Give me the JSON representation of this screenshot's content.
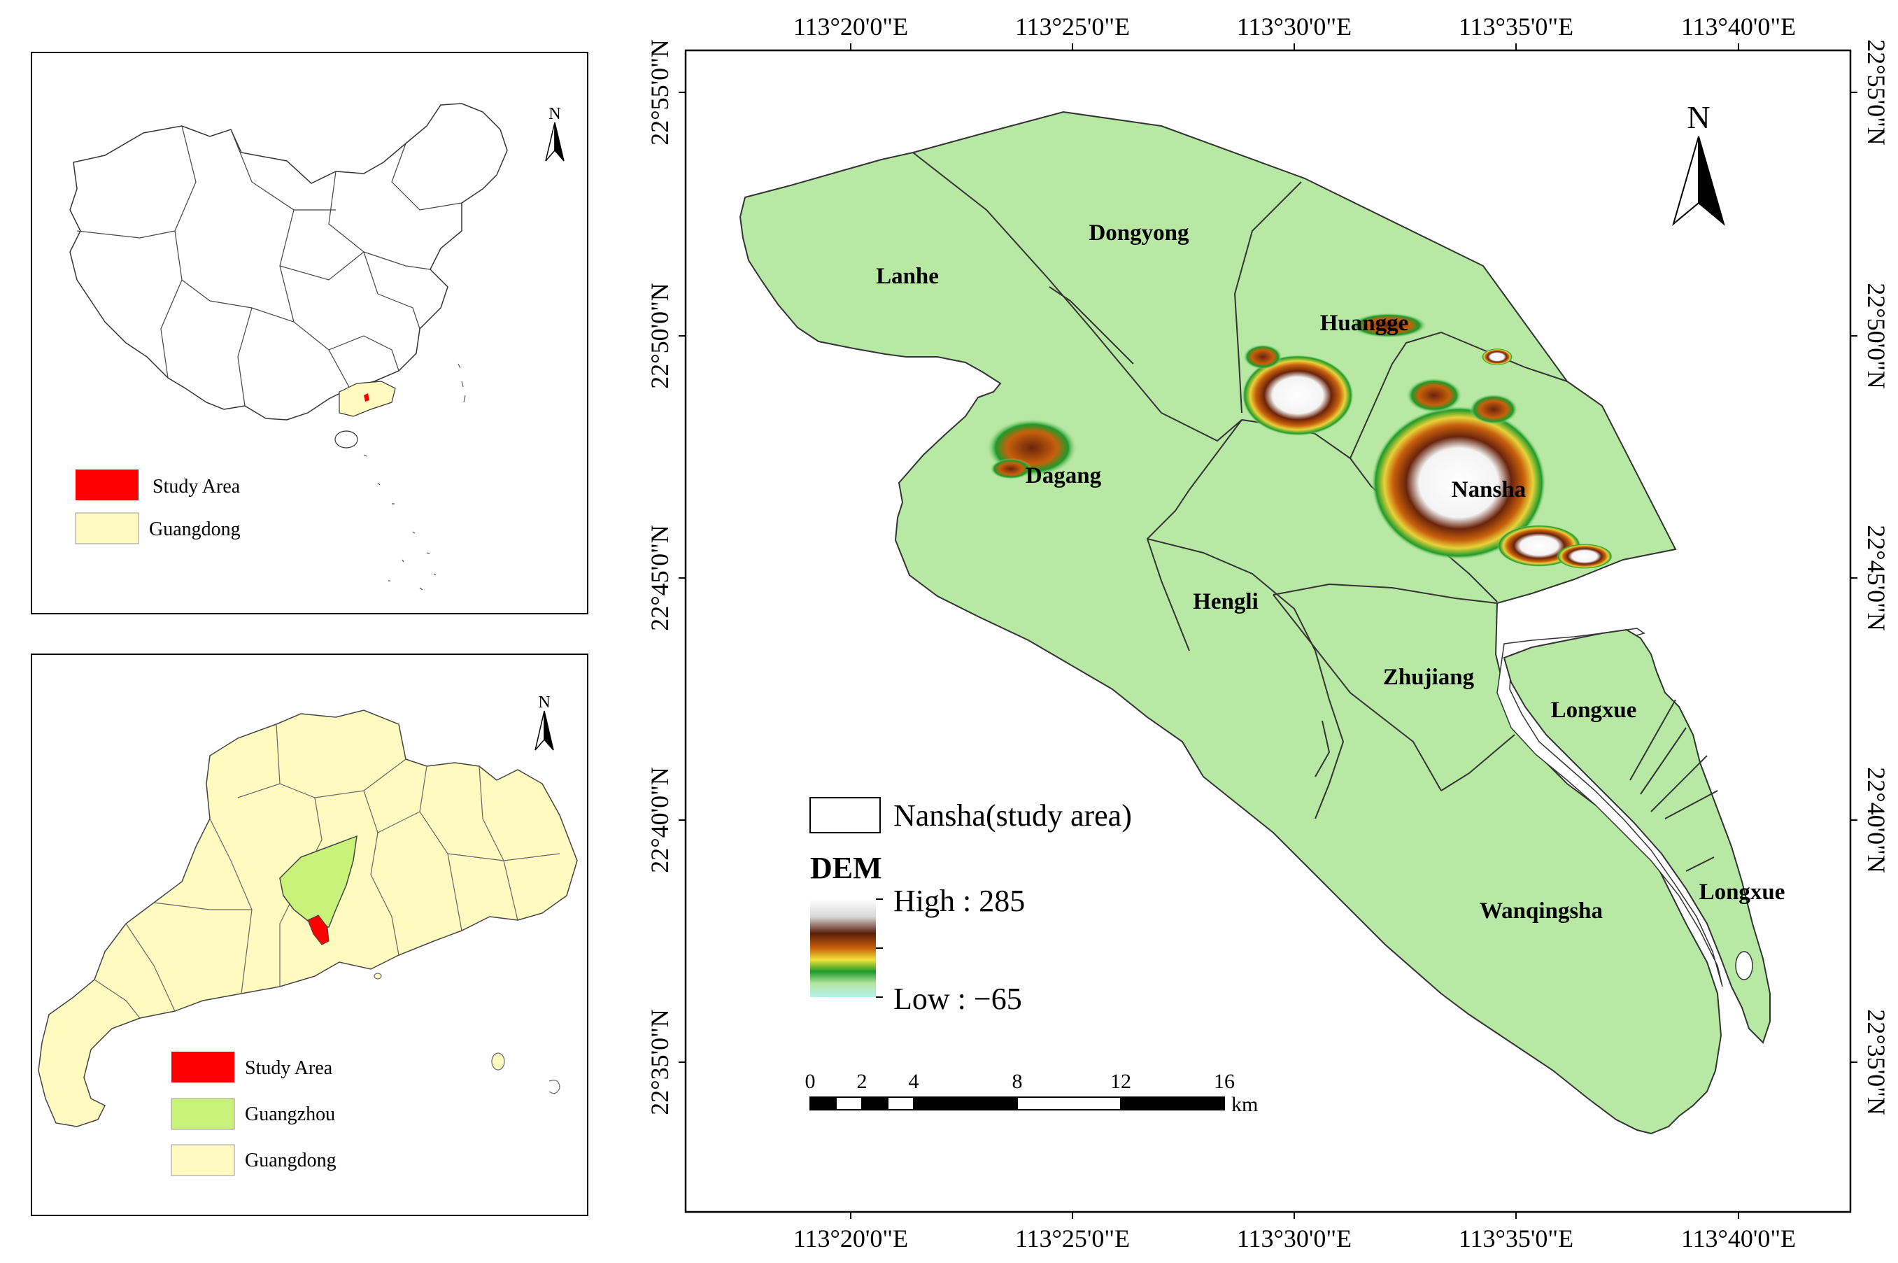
{
  "inset_china": {
    "north_label": "N",
    "legend": [
      {
        "label": "Study Area",
        "color": "#ff0000"
      },
      {
        "label": "Guangdong",
        "color": "#fffac0"
      }
    ]
  },
  "inset_guangdong": {
    "north_label": "N",
    "legend": [
      {
        "label": "Study Area",
        "color": "#ff0000"
      },
      {
        "label": "Guangzhou",
        "color": "#c8f27a"
      },
      {
        "label": "Guangdong",
        "color": "#fffac0"
      }
    ]
  },
  "main_map": {
    "north_label": "N",
    "lon_ticks": [
      "113°20'0\"E",
      "113°25'0\"E",
      "113°30'0\"E",
      "113°35'0\"E",
      "113°40'0\"E"
    ],
    "lat_ticks": [
      "22°55'0\"N",
      "22°50'0\"N",
      "22°45'0\"N",
      "22°40'0\"N",
      "22°35'0\"N"
    ],
    "towns": [
      "Lanhe",
      "Dongyong",
      "Huangge",
      "Dagang",
      "Nansha",
      "Hengli",
      "Zhujiang",
      "Longxue",
      "Wanqingsha",
      "Longxue"
    ],
    "legend": {
      "study_area_label": "Nansha(study area)",
      "dem_title": "DEM",
      "high_label": "High : 285",
      "low_label": "Low : −65",
      "colors": [
        "#ffffff",
        "#5a1e0a",
        "#c8600c",
        "#f2e23a",
        "#1e9a2a",
        "#b4e6a0",
        "#b4f0ea"
      ]
    },
    "scale_bar": {
      "ticks": [
        "0",
        "2",
        "4",
        "8",
        "12",
        "16"
      ],
      "unit": "km"
    }
  }
}
